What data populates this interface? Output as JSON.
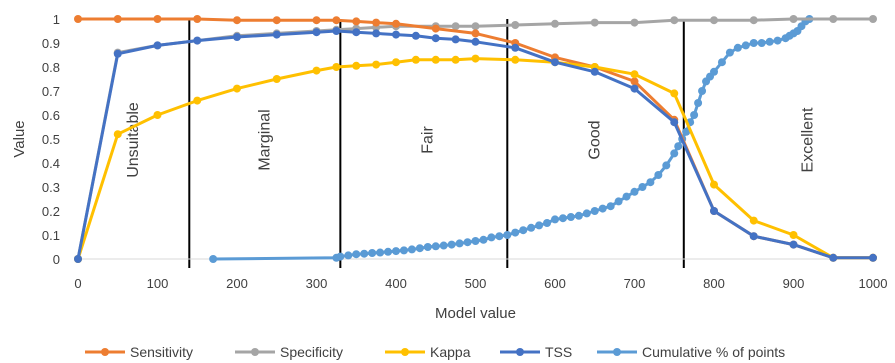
{
  "chart_data": {
    "type": "line",
    "title": "",
    "xlabel": "Model value",
    "ylabel": "Value",
    "xlim": [
      0,
      1000
    ],
    "ylim": [
      0,
      1
    ],
    "x_ticks": [
      0,
      100,
      200,
      300,
      400,
      500,
      600,
      700,
      800,
      900,
      1000
    ],
    "y_ticks": [
      0,
      0.1,
      0.2,
      0.3,
      0.4,
      0.5,
      0.6,
      0.7,
      0.8,
      0.9,
      1
    ],
    "grid": false,
    "legend_position": "bottom",
    "thresholds": [
      140,
      330,
      540,
      762
    ],
    "zones": [
      {
        "label": "Unsuitable",
        "x": 70
      },
      {
        "label": "Marginal",
        "x": 235
      },
      {
        "label": "Fair",
        "x": 440
      },
      {
        "label": "Good",
        "x": 650
      },
      {
        "label": "Excellent",
        "x": 918
      }
    ],
    "series": [
      {
        "name": "Sensitivity",
        "color": "#ED7D31",
        "marker": true,
        "x": [
          0,
          50,
          100,
          150,
          200,
          250,
          300,
          325,
          350,
          375,
          400,
          450,
          500,
          550,
          600,
          650,
          700,
          750,
          800,
          850,
          900,
          950,
          1000
        ],
        "y": [
          1,
          1,
          1,
          1,
          0.995,
          0.995,
          0.995,
          0.995,
          0.99,
          0.985,
          0.98,
          0.96,
          0.94,
          0.9,
          0.84,
          0.8,
          0.74,
          0.58,
          0.2,
          0.095,
          0.06,
          0.005,
          0.005
        ]
      },
      {
        "name": "Specificity",
        "color": "#A5A5A5",
        "marker": true,
        "x": [
          0,
          50,
          100,
          150,
          200,
          250,
          300,
          325,
          350,
          375,
          400,
          450,
          475,
          500,
          550,
          600,
          650,
          700,
          750,
          800,
          850,
          900,
          950,
          1000
        ],
        "y": [
          0,
          0.86,
          0.89,
          0.91,
          0.93,
          0.94,
          0.95,
          0.955,
          0.96,
          0.965,
          0.97,
          0.97,
          0.97,
          0.97,
          0.975,
          0.98,
          0.985,
          0.985,
          0.995,
          0.995,
          0.995,
          1,
          1,
          1
        ]
      },
      {
        "name": "Kappa",
        "color": "#FFC000",
        "marker": true,
        "x": [
          0,
          50,
          100,
          150,
          200,
          250,
          300,
          325,
          350,
          375,
          400,
          425,
          450,
          475,
          500,
          550,
          600,
          650,
          700,
          750,
          800,
          850,
          900,
          950,
          1000
        ],
        "y": [
          0,
          0.52,
          0.6,
          0.66,
          0.71,
          0.75,
          0.785,
          0.8,
          0.805,
          0.81,
          0.82,
          0.83,
          0.83,
          0.83,
          0.835,
          0.83,
          0.82,
          0.8,
          0.77,
          0.69,
          0.31,
          0.16,
          0.1,
          0.005,
          0.005
        ]
      },
      {
        "name": "TSS",
        "color": "#4472C4",
        "marker": true,
        "x": [
          0,
          50,
          100,
          150,
          200,
          250,
          300,
          325,
          350,
          375,
          400,
          425,
          450,
          475,
          500,
          550,
          600,
          650,
          700,
          750,
          800,
          850,
          900,
          950,
          1000
        ],
        "y": [
          0,
          0.855,
          0.89,
          0.91,
          0.925,
          0.935,
          0.945,
          0.95,
          0.945,
          0.94,
          0.935,
          0.93,
          0.92,
          0.915,
          0.905,
          0.88,
          0.82,
          0.78,
          0.71,
          0.57,
          0.2,
          0.095,
          0.06,
          0.005,
          0.005
        ]
      },
      {
        "name": "Cumulative % of points",
        "color": "#5B9BD5",
        "marker": true,
        "x": [
          170,
          325,
          330,
          340,
          350,
          360,
          370,
          380,
          390,
          400,
          410,
          420,
          430,
          440,
          450,
          460,
          470,
          480,
          490,
          500,
          510,
          520,
          530,
          540,
          550,
          560,
          570,
          580,
          590,
          600,
          610,
          620,
          630,
          640,
          650,
          660,
          670,
          680,
          690,
          700,
          710,
          720,
          730,
          740,
          750,
          755,
          760,
          765,
          770,
          775,
          780,
          785,
          790,
          795,
          800,
          810,
          820,
          830,
          840,
          850,
          860,
          870,
          880,
          890,
          895,
          900,
          905,
          910,
          915,
          920
        ],
        "y": [
          0,
          0.005,
          0.01,
          0.015,
          0.02,
          0.022,
          0.025,
          0.027,
          0.03,
          0.033,
          0.036,
          0.04,
          0.045,
          0.05,
          0.053,
          0.056,
          0.06,
          0.065,
          0.07,
          0.075,
          0.08,
          0.09,
          0.095,
          0.1,
          0.11,
          0.12,
          0.13,
          0.14,
          0.15,
          0.165,
          0.17,
          0.175,
          0.18,
          0.19,
          0.2,
          0.21,
          0.22,
          0.24,
          0.26,
          0.28,
          0.3,
          0.32,
          0.35,
          0.39,
          0.44,
          0.47,
          0.5,
          0.53,
          0.57,
          0.6,
          0.65,
          0.7,
          0.74,
          0.76,
          0.78,
          0.82,
          0.86,
          0.88,
          0.89,
          0.9,
          0.9,
          0.905,
          0.91,
          0.92,
          0.93,
          0.94,
          0.95,
          0.97,
          0.99,
          1
        ]
      }
    ]
  }
}
